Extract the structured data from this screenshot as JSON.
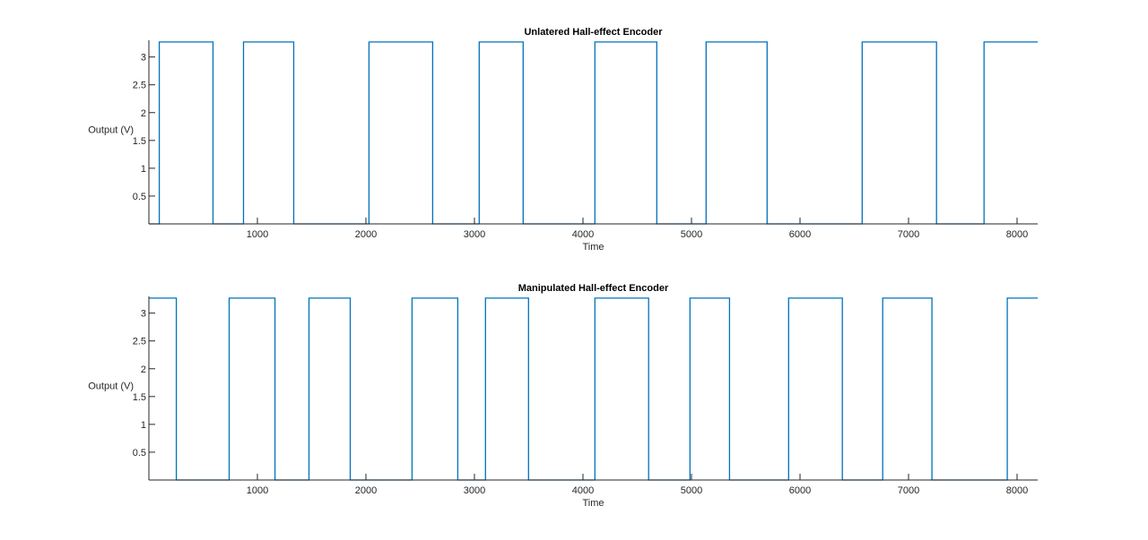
{
  "figure": {
    "background": "#ffffff",
    "line_color": "#0072bd"
  },
  "chart_data": [
    {
      "type": "line",
      "title": "Unlatered Hall-effect Encoder",
      "xlabel": "Time",
      "ylabel": "Output (V)",
      "xlim": [
        0,
        8190
      ],
      "ylim": [
        0,
        3.3
      ],
      "xticks": [
        1000,
        2000,
        3000,
        4000,
        5000,
        6000,
        7000,
        8000
      ],
      "xtick_labels": [
        "1000",
        "2000",
        "3000",
        "4000",
        "5000",
        "6000",
        "7000",
        "8000"
      ],
      "yticks": [
        0.5,
        1,
        1.5,
        2,
        2.5,
        3
      ],
      "ytick_labels": [
        "0.5",
        "1",
        "1.5",
        "2",
        "2.5",
        "3"
      ],
      "grid": false,
      "high_level": 3.27,
      "low_level": 0.0,
      "initial_state": "low",
      "transitions": [
        96,
        591,
        872,
        1335,
        2028,
        2615,
        3044,
        3449,
        4110,
        4680,
        5135,
        5697,
        6573,
        7258,
        7696
      ],
      "series": [
        {
          "name": "Unlatered",
          "color": "#0072bd"
        }
      ]
    },
    {
      "type": "line",
      "title": "Manipulated Hall-effect Encoder",
      "xlabel": "Time",
      "ylabel": "Output (V)",
      "xlim": [
        0,
        8190
      ],
      "ylim": [
        0,
        3.3
      ],
      "xticks": [
        1000,
        2000,
        3000,
        4000,
        5000,
        6000,
        7000,
        8000
      ],
      "xtick_labels": [
        "1000",
        "2000",
        "3000",
        "4000",
        "5000",
        "6000",
        "7000",
        "8000"
      ],
      "yticks": [
        0.5,
        1,
        1.5,
        2,
        2.5,
        3
      ],
      "ytick_labels": [
        "0.5",
        "1",
        "1.5",
        "2",
        "2.5",
        "3"
      ],
      "grid": false,
      "high_level": 3.27,
      "low_level": 0.0,
      "initial_state": "high",
      "transitions": [
        253,
        740,
        1162,
        1475,
        1855,
        2425,
        2846,
        3102,
        3498,
        4110,
        4605,
        4986,
        5350,
        5895,
        6390,
        6762,
        7216,
        7910
      ],
      "series": [
        {
          "name": "Manipulated",
          "color": "#0072bd"
        }
      ]
    }
  ]
}
